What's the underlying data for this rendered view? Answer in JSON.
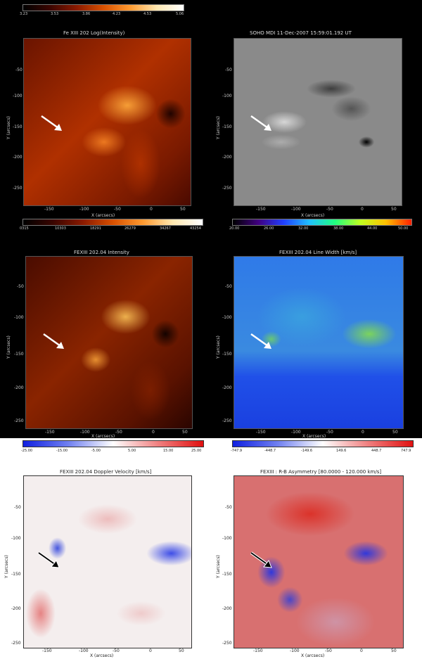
{
  "colorbars": {
    "cb1": {
      "ticks": [
        "3.23",
        "3.53",
        "3.86",
        "4.23",
        "4.53",
        "5.06"
      ]
    },
    "cb2": {
      "ticks": [
        "0315",
        "10303",
        "18291",
        "26279",
        "34267",
        "43254"
      ]
    },
    "cb3": {
      "ticks": [
        "20.00",
        "26.00",
        "32.00",
        "38.00",
        "44.00",
        "50.00"
      ]
    },
    "cb4": {
      "ticks": [
        "-25.00",
        "-15.00",
        "-5.00",
        "5.00",
        "15.00",
        "25.00"
      ]
    },
    "cb5": {
      "ticks": [
        "-747.9",
        "-448.7",
        "-149.6",
        "149.6",
        "448.7",
        "747.9"
      ]
    }
  },
  "panels": {
    "p1": {
      "title": "Fe XIII 202  Log(Intensity)",
      "xlabel": "X (arcsecs)",
      "ylabel": "Y (arcsecs)",
      "xticks": [
        "-150",
        "-100",
        "-50",
        "0",
        "50"
      ],
      "yticks": [
        "-50",
        "-100",
        "-150",
        "-200",
        "-250"
      ]
    },
    "p2": {
      "title": "SOHO MDI 11-Dec-2007 15:59:01.192 UT",
      "xlabel": "X (arcsecs)",
      "ylabel": "Y (arcsecs)",
      "xticks": [
        "-150",
        "-100",
        "-50",
        "0",
        "50"
      ],
      "yticks": [
        "-50",
        "-100",
        "-150",
        "-200",
        "-250"
      ]
    },
    "p3": {
      "title": "FEXIII 202.04 Intensity",
      "xlabel": "X (arcsecs)",
      "ylabel": "Y (arcsecs)",
      "xticks": [
        "-150",
        "-100",
        "-50",
        "0",
        "50"
      ],
      "yticks": [
        "-50",
        "-100",
        "-150",
        "-200",
        "-250"
      ]
    },
    "p4": {
      "title": "FEXIII 202.04 Line Width [km/s]",
      "xlabel": "X (arcsecs)",
      "ylabel": "Y (arcsecs)",
      "xticks": [
        "-150",
        "-100",
        "-50",
        "0",
        "50"
      ],
      "yticks": [
        "-50",
        "-100",
        "-150",
        "-200",
        "-250"
      ]
    },
    "p5": {
      "title": "FEXIII 202.04 Doppler Velocity [km/s]",
      "xlabel": "X (arcsecs)",
      "ylabel": "Y (arcsecs)",
      "xticks": [
        "-150",
        "-100",
        "-50",
        "0",
        "50"
      ],
      "yticks": [
        "-50",
        "-100",
        "-150",
        "-200",
        "-250"
      ]
    },
    "p6": {
      "title": "FEXIII : R-B Asymmetry [80.0000 - 120.000 km/s]",
      "xlabel": "X (arcsecs)",
      "ylabel": "Y (arcsecs)",
      "xticks": [
        "-150",
        "-100",
        "-50",
        "0",
        "50"
      ],
      "yticks": [
        "-50",
        "-100",
        "-150",
        "-200",
        "-250"
      ]
    }
  },
  "colors": {
    "fe_dark": "#3a0800",
    "fe_mid": "#c03800",
    "fe_bright": "#ffc060",
    "mdi_gray": "#8a8a8a",
    "lw_blue": "#2a6ae8",
    "lw_cyan": "#40c8e0",
    "lw_green": "#90e040",
    "dop_red": "#e04040",
    "dop_blue": "#3040e0"
  }
}
